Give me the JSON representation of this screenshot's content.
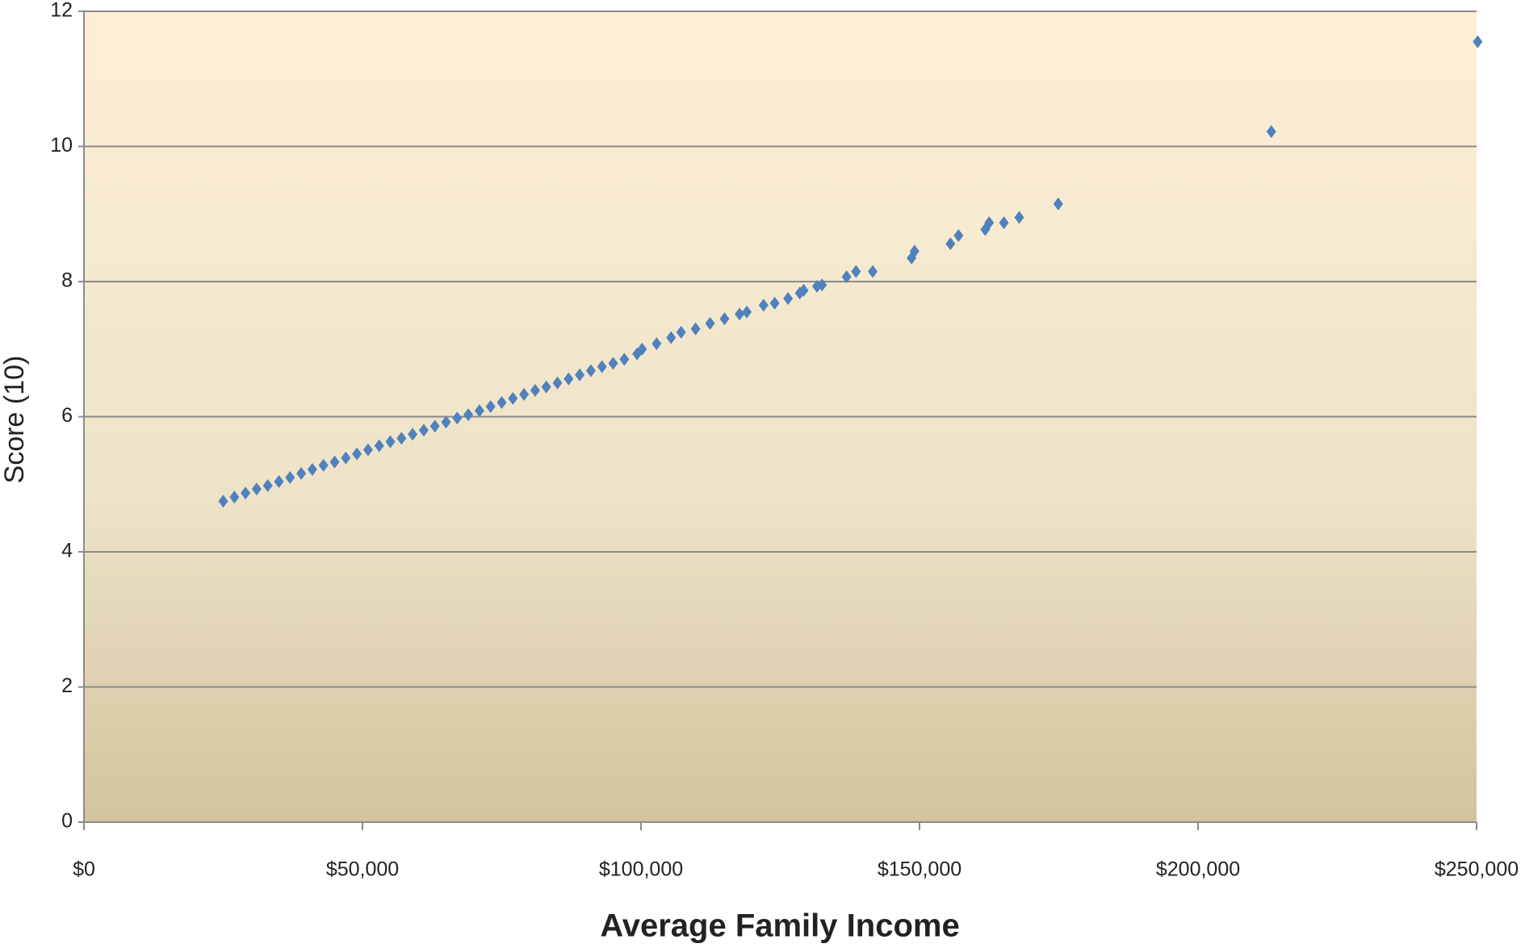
{
  "chart_data": {
    "type": "scatter",
    "x_label": "Average Family Income",
    "y_label": "Score (10)",
    "color": "#4f81bd",
    "grid": true,
    "xlim": [
      0,
      250000
    ],
    "xticks": [
      {
        "value": 0,
        "label": "$0"
      },
      {
        "value": 50000,
        "label": "$50,000"
      },
      {
        "value": 100000,
        "label": "$100,000"
      },
      {
        "value": 150000,
        "label": "$150,000"
      },
      {
        "value": 200000,
        "label": "$200,000"
      },
      {
        "value": 250000,
        "label": "$250,000"
      }
    ],
    "ylim": [
      0,
      12
    ],
    "yticks": [
      0,
      2,
      4,
      6,
      8,
      10,
      12
    ],
    "x": [
      25000,
      27000,
      29000,
      31000,
      33000,
      35000,
      37000,
      39000,
      41000,
      43000,
      45000,
      47000,
      49000,
      51000,
      53000,
      55000,
      57000,
      59000,
      61000,
      63000,
      65000,
      67000,
      69000,
      71000,
      73000,
      75000,
      77000,
      79000,
      81000,
      83000,
      85000,
      87000,
      89000,
      91000,
      93000,
      95000,
      97000,
      99300,
      100200,
      102800,
      105400,
      107200,
      109800,
      112400,
      115000,
      117700,
      119000,
      122000,
      124000,
      126400,
      128500,
      129200,
      131600,
      132500,
      136900,
      138600,
      141600,
      148570,
      149100,
      155550,
      157000,
      161800,
      162500,
      165150,
      167900,
      174900,
      213150,
      250200
    ],
    "y": [
      4.75,
      4.81,
      4.87,
      4.93,
      4.98,
      5.04,
      5.1,
      5.16,
      5.22,
      5.28,
      5.33,
      5.39,
      5.45,
      5.51,
      5.57,
      5.63,
      5.68,
      5.74,
      5.8,
      5.86,
      5.92,
      5.98,
      6.03,
      6.09,
      6.15,
      6.21,
      6.27,
      6.33,
      6.39,
      6.44,
      6.5,
      6.56,
      6.62,
      6.68,
      6.74,
      6.79,
      6.85,
      6.93,
      7.0,
      7.08,
      7.17,
      7.25,
      7.3,
      7.38,
      7.45,
      7.52,
      7.55,
      7.65,
      7.68,
      7.75,
      7.83,
      7.87,
      7.93,
      7.95,
      8.07,
      8.15,
      8.15,
      8.35,
      8.45,
      8.56,
      8.68,
      8.77,
      8.87,
      8.87,
      8.95,
      9.15,
      10.22,
      11.55
    ]
  }
}
